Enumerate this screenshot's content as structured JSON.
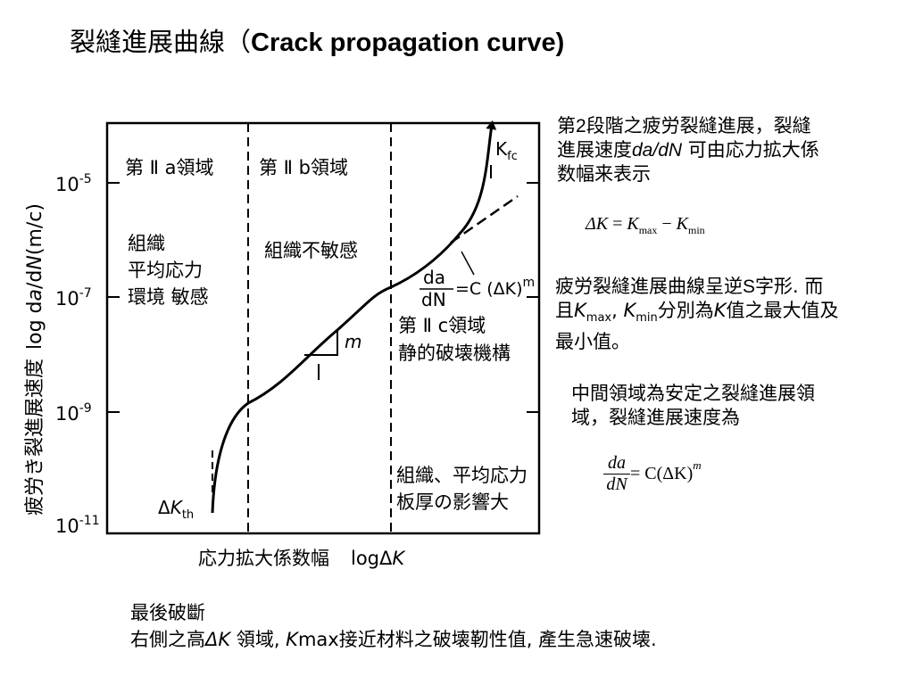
{
  "slide": {
    "title_zh": "裂縫進展曲線（",
    "title_en": "Crack propagation curve)"
  },
  "diagram": {
    "y_axis_label": "疲労き裂進展速度",
    "y_axis_label_log": "log d",
    "y_axis_label_a": "a",
    "y_axis_label_mid": "/d",
    "y_axis_label_N": "N",
    "y_axis_label_unit": "(m/c)",
    "y_ticks": [
      {
        "base": "10",
        "exp": "-5"
      },
      {
        "base": "10",
        "exp": "-7"
      },
      {
        "base": "10",
        "exp": "-9"
      },
      {
        "base": "10",
        "exp": "-11"
      }
    ],
    "x_axis_label": "応力拡大係数幅",
    "x_axis_label_log": "logΔ",
    "x_axis_label_K": "K",
    "region_a_title": "第 Ⅱ a領域",
    "region_b_title": "第 Ⅱ b領域",
    "region_a_desc": [
      "組織",
      "平均応力",
      "環境 敏感"
    ],
    "region_b_desc": "組織不敏感",
    "region_c_title": "第 Ⅱ c領域",
    "region_c_desc": "静的破壊機構",
    "region_c_bottom": [
      "組織、平均応力",
      "板厚の影響大"
    ],
    "kfc_label": "K",
    "kfc_sub": "fc",
    "kth_label_delta": "Δ",
    "kth_label_K": "K",
    "kth_sub": "th",
    "slope_label": "m",
    "paris_num": "da",
    "paris_den": "dN",
    "paris_rhs": "=C (ΔK)",
    "paris_exp": "m"
  },
  "notes": {
    "stage2_line1_a": "第",
    "stage2_line1_b": "2",
    "stage2_line1_c": "段階之疲労裂縫進展，裂縫",
    "stage2_line2_a": "進展速度",
    "stage2_line2_b": "da/dN",
    "stage2_line2_c": " 可由応力拡大係",
    "stage2_line3": "数幅来表示",
    "formula_lhs": "ΔK",
    "formula_eq": " = ",
    "formula_k1": "K",
    "formula_k1_sub": "max",
    "formula_minus": " − ",
    "formula_k2": "K",
    "formula_k2_sub": "min",
    "scurve_line1_a": "疲労裂縫進展曲線呈逆",
    "scurve_line1_b": "S字形",
    "scurve_line1_c": ". 而",
    "scurve_line2_a": "且",
    "scurve_line2_k1": "K",
    "scurve_line2_k1sub": "max",
    "scurve_line2_sep": ", ",
    "scurve_line2_k2": "K",
    "scurve_line2_k2sub": "min",
    "scurve_line2_b": "分別為",
    "scurve_line2_k3": "K",
    "scurve_line2_c": "值之最大值及",
    "scurve_line3": "最小值。",
    "middle_line1": "中間領域為安定之裂縫進展領",
    "middle_line2": "域，裂縫進展速度為",
    "paris2_num": "da",
    "paris2_den": "dN",
    "paris2_rhs": " = C(ΔK)",
    "paris2_exp": "m"
  },
  "bottom": {
    "line1": "最後破斷",
    "line2_a": "右側之高",
    "line2_dk": "ΔK",
    "line2_b": " 領域,  ",
    "line2_k": "K",
    "line2_c": "max接近材料之破壊靭性值,  產生急速破壊."
  }
}
